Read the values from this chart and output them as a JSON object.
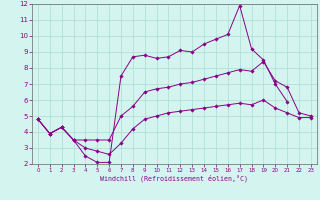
{
  "xlabel": "Windchill (Refroidissement éolien,°C)",
  "x": [
    0,
    1,
    2,
    3,
    4,
    5,
    6,
    7,
    8,
    9,
    10,
    11,
    12,
    13,
    14,
    15,
    16,
    17,
    18,
    19,
    20,
    21,
    22,
    23
  ],
  "line_max": [
    4.8,
    3.9,
    4.3,
    3.5,
    2.5,
    2.1,
    2.1,
    7.5,
    8.7,
    8.8,
    8.6,
    8.7,
    9.1,
    9.0,
    9.5,
    9.8,
    10.1,
    11.9,
    9.2,
    8.5,
    7.0,
    5.9,
    null,
    null
  ],
  "line_mean": [
    4.8,
    3.9,
    4.3,
    3.5,
    3.5,
    3.5,
    3.5,
    5.0,
    5.6,
    6.5,
    6.7,
    6.8,
    7.0,
    7.1,
    7.3,
    7.5,
    7.7,
    7.9,
    7.8,
    8.4,
    7.2,
    6.8,
    5.2,
    5.0
  ],
  "line_min": [
    4.8,
    3.9,
    4.3,
    3.5,
    3.0,
    2.8,
    2.6,
    3.3,
    4.2,
    4.8,
    5.0,
    5.2,
    5.3,
    5.4,
    5.5,
    5.6,
    5.7,
    5.8,
    5.7,
    6.0,
    5.5,
    5.2,
    4.9,
    4.9
  ],
  "ylim": [
    2,
    12
  ],
  "xlim": [
    -0.5,
    23.5
  ],
  "yticks": [
    2,
    3,
    4,
    5,
    6,
    7,
    8,
    9,
    10,
    11,
    12
  ],
  "xticks": [
    0,
    1,
    2,
    3,
    4,
    5,
    6,
    7,
    8,
    9,
    10,
    11,
    12,
    13,
    14,
    15,
    16,
    17,
    18,
    19,
    20,
    21,
    22,
    23
  ],
  "line_color": "#880088",
  "bg_color": "#d4f5ef",
  "grid_color": "#aaddcc",
  "marker": "D",
  "markersize": 1.8,
  "linewidth": 0.7,
  "tick_fontsize_x": 4.0,
  "tick_fontsize_y": 5.0,
  "xlabel_fontsize": 4.8
}
